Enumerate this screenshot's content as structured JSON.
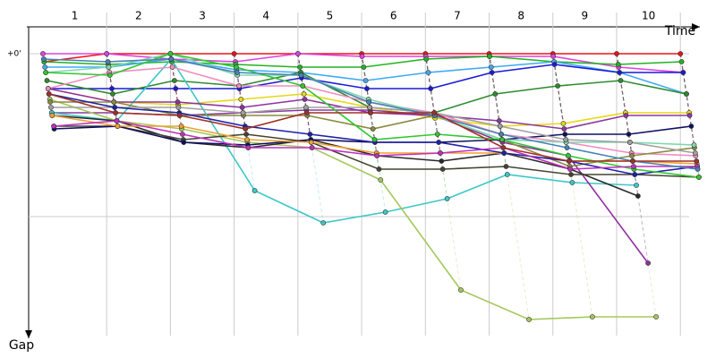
{
  "chart_data": {
    "type": "gap-line",
    "x_label": "Time",
    "y_label": "Gap",
    "x": [
      0,
      1,
      2,
      3,
      4,
      5,
      6,
      7,
      8,
      9,
      10
    ],
    "xlim": [
      -0.21,
      10.32
    ],
    "xticks": [
      1,
      2,
      3,
      4,
      5,
      6,
      7,
      8,
      9,
      10
    ],
    "ylim": [
      0,
      105
    ],
    "yticks": [
      {
        "value": 0,
        "label": "+0'"
      }
    ],
    "grid": true,
    "series": [
      {
        "color": "#e8141a",
        "values": [
          3,
          0,
          0,
          0,
          0,
          0,
          0,
          0,
          0,
          0,
          0
        ]
      },
      {
        "color": "#e040e0",
        "values": [
          0,
          0,
          2,
          3,
          0,
          1,
          1,
          1,
          1,
          5,
          7
        ]
      },
      {
        "color": "#22b322",
        "values": [
          3,
          4,
          3,
          4,
          5,
          5,
          2,
          1,
          3,
          4,
          3
        ]
      },
      {
        "color": "#3fa9f5",
        "values": [
          5,
          5,
          2,
          6,
          7,
          10,
          7,
          5,
          3,
          7,
          15
        ]
      },
      {
        "color": "#1a1ad6",
        "values": [
          13,
          13,
          13,
          13,
          9,
          13,
          13,
          7,
          4,
          7,
          7
        ]
      },
      {
        "color": "#2e8b2e",
        "values": [
          10,
          15,
          10,
          12,
          7,
          20,
          22,
          15,
          12,
          10,
          15
        ]
      },
      {
        "color": "#e6d817",
        "values": [
          13,
          18,
          19,
          17,
          15,
          20,
          24,
          27,
          26,
          22,
          22
        ]
      },
      {
        "color": "#8b3a9c",
        "values": [
          22,
          22,
          23,
          22,
          21,
          21,
          23,
          25,
          28,
          23,
          23
        ]
      },
      {
        "color": "#3cc8c8",
        "values": [
          22,
          25,
          2,
          51,
          63,
          59,
          54,
          45,
          48,
          49,
          null
        ]
      },
      {
        "color": "#a4c85a",
        "values": [
          17,
          25,
          28,
          33,
          35,
          47,
          88,
          99,
          98,
          98,
          null
        ]
      },
      {
        "color": "#9030a0",
        "values": [
          13,
          18,
          18,
          20,
          17,
          22,
          23,
          33,
          38,
          78,
          null
        ]
      },
      {
        "color": "#2a2a2a",
        "values": [
          23,
          25,
          33,
          35,
          32,
          38,
          40,
          37,
          43,
          53,
          null
        ]
      },
      {
        "color": "#444430",
        "values": [
          27,
          27,
          32,
          30,
          33,
          43,
          43,
          42,
          45,
          45,
          46
        ]
      },
      {
        "color": "#101060",
        "values": [
          28,
          27,
          33,
          34,
          32,
          33,
          33,
          32,
          30,
          30,
          27
        ]
      },
      {
        "color": "#f28cc0",
        "values": [
          13,
          7,
          5,
          12,
          12,
          18,
          22,
          30,
          33,
          37,
          38
        ]
      },
      {
        "color": "#f0a030",
        "values": [
          23,
          27,
          27,
          32,
          33,
          37,
          37,
          37,
          40,
          40,
          41
        ]
      },
      {
        "color": "#8a8a40",
        "values": [
          18,
          18,
          23,
          23,
          23,
          28,
          23,
          32,
          42,
          38,
          35
        ]
      },
      {
        "color": "#7fd8b0",
        "values": [
          7,
          5,
          0,
          8,
          8,
          17,
          23,
          32,
          33,
          33,
          34
        ]
      },
      {
        "color": "#a0a0a0",
        "values": [
          20,
          20,
          20,
          22,
          20,
          20,
          22,
          27,
          32,
          33,
          37
        ]
      },
      {
        "color": "#2020a8",
        "values": [
          15,
          20,
          22,
          27,
          30,
          33,
          33,
          37,
          40,
          45,
          42
        ]
      },
      {
        "color": "#30c830",
        "values": [
          7,
          8,
          0,
          5,
          12,
          32,
          30,
          32,
          38,
          43,
          46
        ]
      },
      {
        "color": "#c030c0",
        "values": [
          27,
          25,
          30,
          35,
          35,
          38,
          37,
          35,
          43,
          42,
          42
        ]
      },
      {
        "color": "#4682b4",
        "values": [
          2,
          3,
          2,
          7,
          8,
          18,
          23,
          30,
          35,
          40,
          43
        ]
      },
      {
        "color": "#a03028",
        "values": [
          15,
          22,
          23,
          28,
          22,
          22,
          22,
          35,
          40,
          40,
          40
        ]
      }
    ]
  }
}
